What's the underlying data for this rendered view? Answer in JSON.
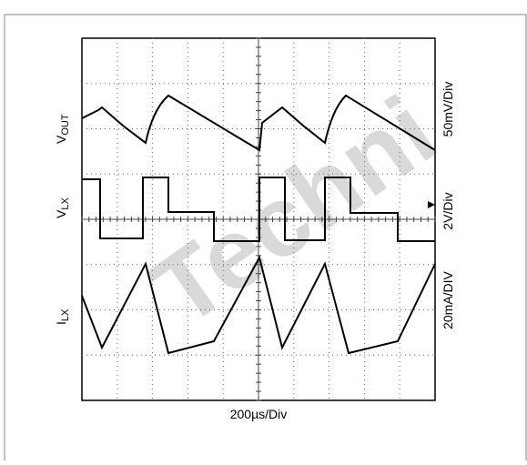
{
  "watermark": "Techni",
  "labels": {
    "vout": {
      "main": "V",
      "sub": "OUT"
    },
    "vlx": {
      "main": "V",
      "sub": "LX"
    },
    "ilx": {
      "main": "I",
      "sub": "LX"
    }
  },
  "scales": {
    "vout": "50mV/Div",
    "vlx": "2V/Div",
    "ilx": "20mA/DIV",
    "time": "200µs/Div"
  }
}
